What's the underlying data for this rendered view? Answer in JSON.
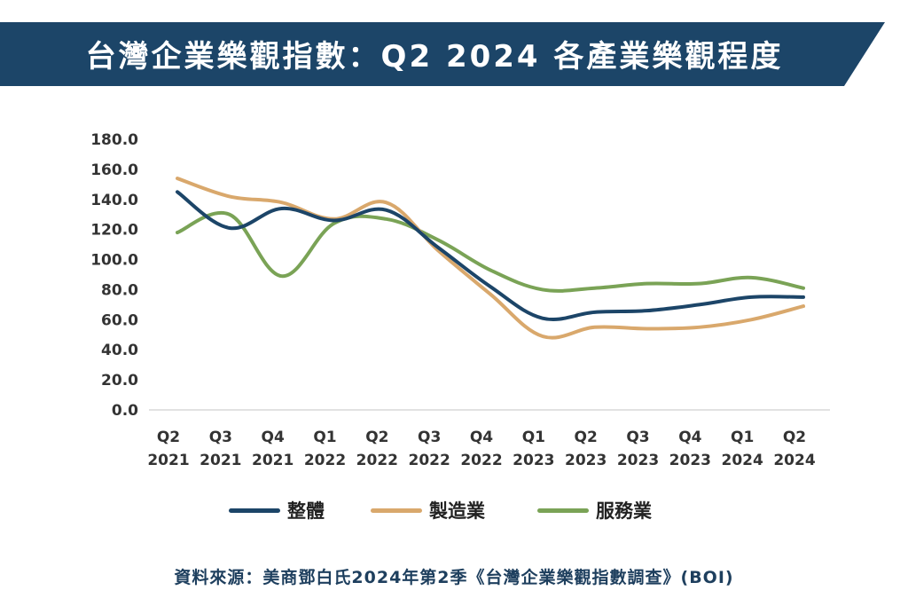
{
  "header": {
    "title": "台灣企業樂觀指數：Q2 2024 各產業樂觀程度",
    "banner_color": "#1c4568"
  },
  "chart_data": {
    "type": "line",
    "categories": [
      [
        "Q2",
        "2021"
      ],
      [
        "Q3",
        "2021"
      ],
      [
        "Q4",
        "2021"
      ],
      [
        "Q1",
        "2022"
      ],
      [
        "Q2",
        "2022"
      ],
      [
        "Q3",
        "2022"
      ],
      [
        "Q4",
        "2022"
      ],
      [
        "Q1",
        "2023"
      ],
      [
        "Q2",
        "2023"
      ],
      [
        "Q3",
        "2023"
      ],
      [
        "Q4",
        "2023"
      ],
      [
        "Q1",
        "2024"
      ],
      [
        "Q2",
        "2024"
      ]
    ],
    "yticks": [
      "0.0",
      "20.0",
      "40.0",
      "60.0",
      "80.0",
      "100.0",
      "120.0",
      "140.0",
      "160.0",
      "180.0"
    ],
    "ylim": [
      0,
      180
    ],
    "grid": false,
    "legend_position": "bottom",
    "series": [
      {
        "name": "整體",
        "color": "#1c4568",
        "values": [
          145,
          121,
          134,
          126,
          133,
          108,
          82,
          61,
          65,
          66,
          70,
          75,
          75
        ]
      },
      {
        "name": "製造業",
        "color": "#d9a86c",
        "values": [
          154,
          142,
          138,
          127,
          138,
          106,
          77,
          49,
          55,
          54,
          55,
          60,
          69
        ]
      },
      {
        "name": "服務業",
        "color": "#7aa356",
        "values": [
          118,
          130,
          89,
          124,
          127,
          113,
          93,
          80,
          81,
          84,
          84,
          88,
          81
        ]
      }
    ]
  },
  "source": {
    "text": "資料來源：美商鄧白氏2024年第2季《台灣企業樂觀指數調查》(BOI)"
  }
}
